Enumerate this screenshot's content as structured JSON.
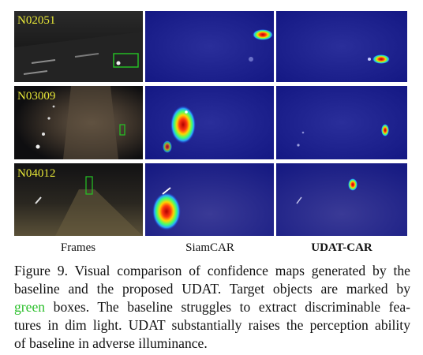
{
  "figure": {
    "rows": [
      {
        "id": "N02051"
      },
      {
        "id": "N03009"
      },
      {
        "id": "N04012"
      }
    ],
    "columns": [
      {
        "label": "Frames",
        "bold": false
      },
      {
        "label": "SiamCAR",
        "bold": false
      },
      {
        "label": "UDAT-CAR",
        "bold": true
      }
    ],
    "colors": {
      "sequence_label": "#e8e838",
      "target_box": "#25c625",
      "heatmap_bg": "#12157a",
      "heatmap_hot": "#d81818"
    }
  },
  "caption": {
    "figure_label": "Figure 9.",
    "line1_rest": "Visual comparison of confidence maps generated by the",
    "line2": "baseline and the proposed UDAT. Target objects are marked by",
    "line3_green": "green",
    "line3_rest": "boxes. The baseline struggles to extract discriminable fea-",
    "line4": "tures in dim light. UDAT substantially raises the perception ability",
    "line5": "of baseline in adverse illuminance."
  }
}
